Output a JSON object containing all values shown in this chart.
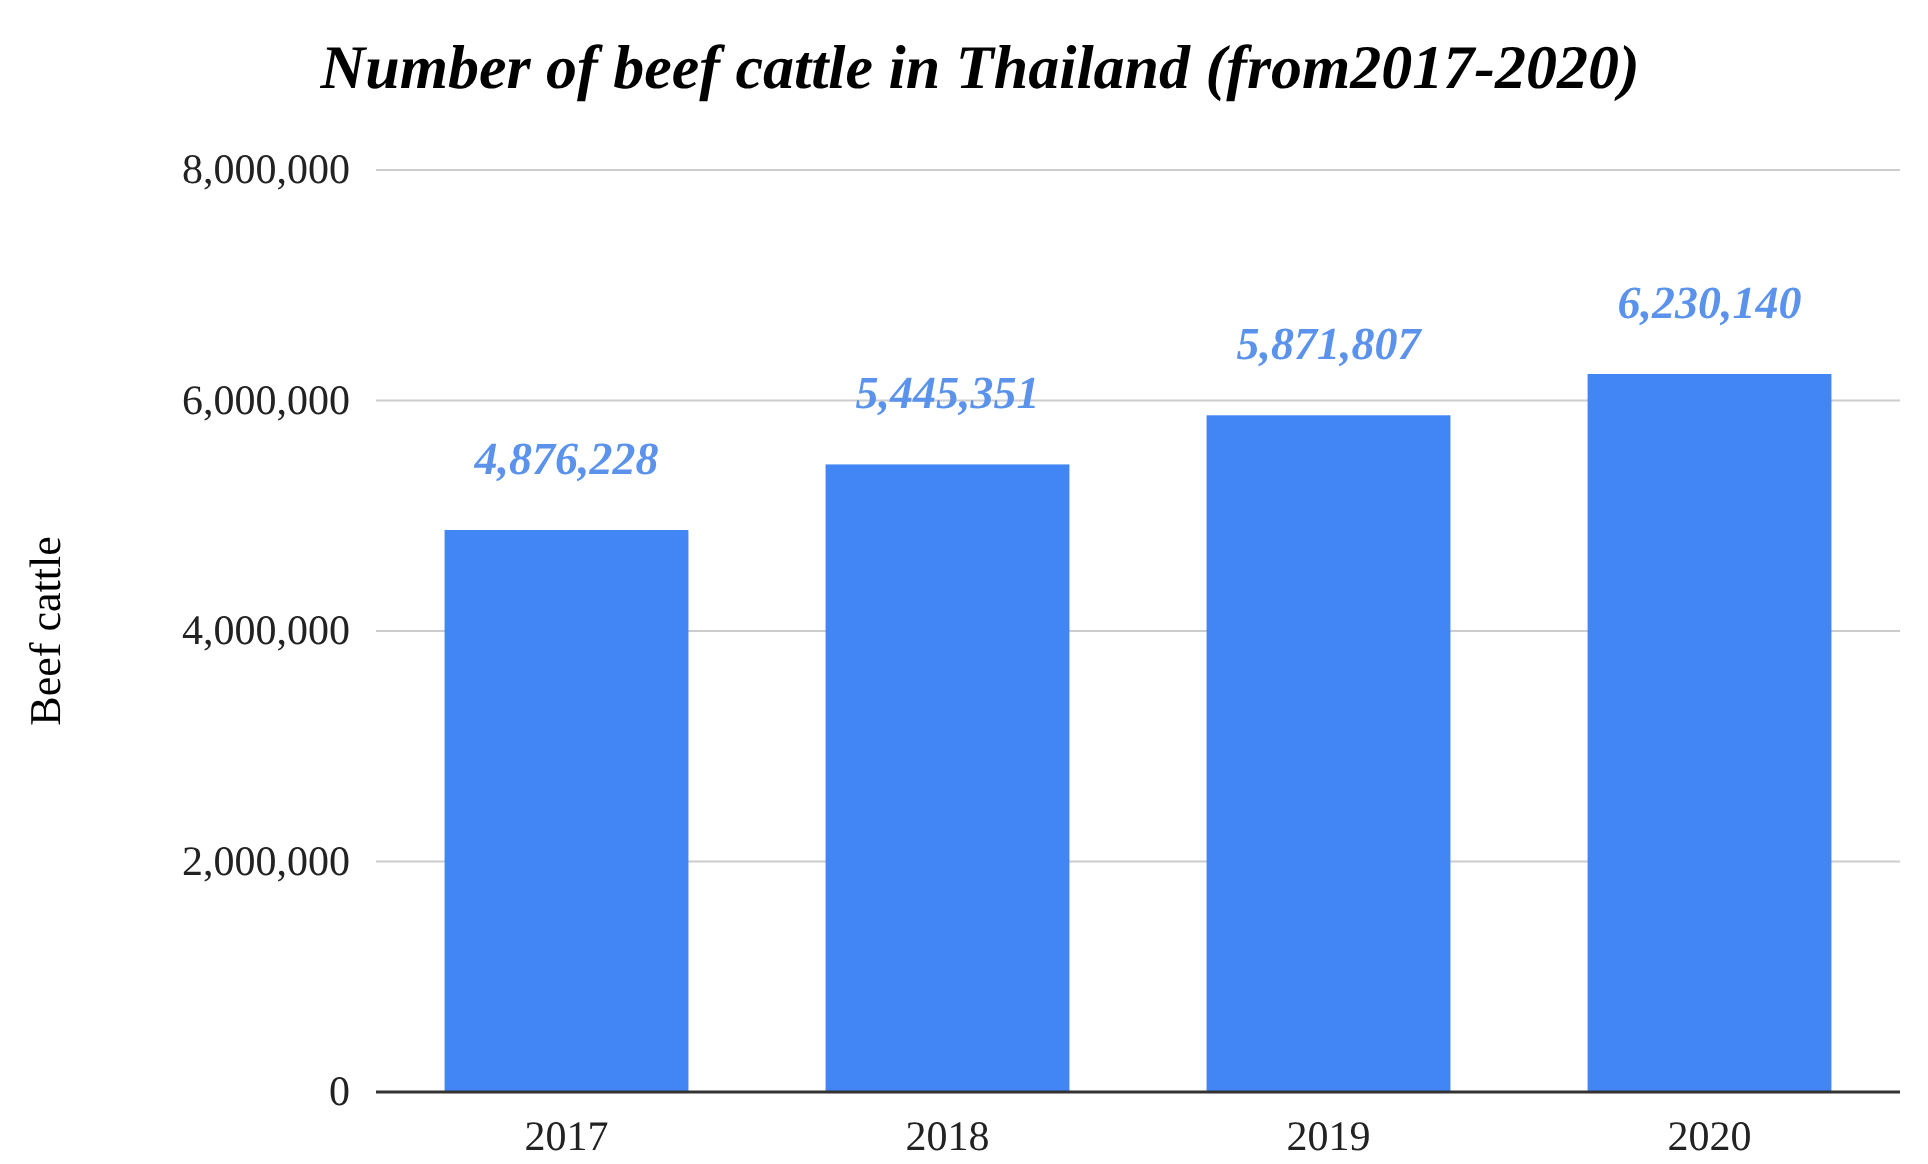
{
  "chart_data": {
    "type": "bar",
    "title": "Number of beef cattle in Thailand (from2017-2020)",
    "ylabel": "Beef cattle",
    "categories": [
      "2017",
      "2018",
      "2019",
      "2020"
    ],
    "values": [
      4876228,
      5445351,
      5871807,
      6230140
    ],
    "color": "#4285f4",
    "ylim": [
      0,
      8000000
    ],
    "yticks": [
      {
        "value": 0,
        "label": "0"
      },
      {
        "value": 2000000,
        "label": "2,000,000"
      },
      {
        "value": 4000000,
        "label": "4,000,000"
      },
      {
        "value": 6000000,
        "label": "6,000,000"
      },
      {
        "value": 8000000,
        "label": "8,000,000"
      }
    ],
    "value_labels": [
      "4,876,228",
      "5,445,351",
      "5,871,807",
      "6,230,140"
    ],
    "grid": "y"
  }
}
